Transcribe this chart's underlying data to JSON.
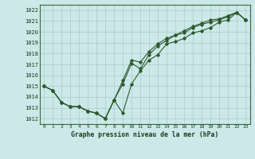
{
  "title": "Graphe pression niveau de la mer (hPa)",
  "bg_color": "#cce8e8",
  "grid_color": "#aacccc",
  "line_color": "#2d5a2d",
  "x_ticks": [
    0,
    1,
    2,
    3,
    4,
    5,
    6,
    7,
    8,
    9,
    10,
    11,
    12,
    13,
    14,
    15,
    16,
    17,
    18,
    19,
    20,
    21,
    22,
    23
  ],
  "ylim": [
    1011.5,
    1022.5
  ],
  "yticks": [
    1012,
    1013,
    1014,
    1015,
    1016,
    1017,
    1018,
    1019,
    1020,
    1021,
    1022
  ],
  "series1": [
    1015.0,
    1014.6,
    1013.5,
    1013.1,
    1013.1,
    1012.7,
    1012.5,
    1012.0,
    1013.7,
    1015.2,
    1017.1,
    1016.6,
    1017.9,
    1018.7,
    1019.2,
    1019.7,
    1019.9,
    1020.4,
    1020.7,
    1020.9,
    1021.1,
    1021.4,
    1021.8,
    1021.1
  ],
  "series2": [
    1015.0,
    1014.6,
    1013.5,
    1013.1,
    1013.1,
    1012.7,
    1012.5,
    1012.0,
    1013.7,
    1015.5,
    1017.4,
    1017.2,
    1018.2,
    1018.9,
    1019.4,
    1019.7,
    1020.1,
    1020.5,
    1020.8,
    1021.1,
    1021.2,
    1021.5,
    1021.8,
    1021.1
  ],
  "series3": [
    1015.0,
    1014.6,
    1013.5,
    1013.1,
    1013.1,
    1012.7,
    1012.5,
    1012.0,
    1013.7,
    1012.5,
    1015.2,
    1016.4,
    1017.4,
    1017.9,
    1018.9,
    1019.1,
    1019.4,
    1019.9,
    1020.1,
    1020.4,
    1020.9,
    1021.1,
    1021.8,
    1021.1
  ]
}
